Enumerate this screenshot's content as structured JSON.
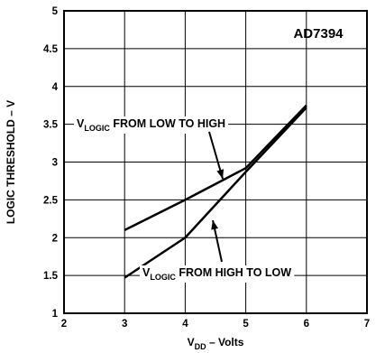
{
  "chart_data": {
    "type": "line",
    "title": "AD7394",
    "xlabel": {
      "main": "V",
      "sub": "DD",
      "rest": " – Volts"
    },
    "ylabel": "LOGIC THRESHOLD – V",
    "xlim": [
      2,
      7
    ],
    "ylim": [
      1,
      5
    ],
    "x_ticks": [
      "2",
      "3",
      "4",
      "5",
      "6",
      "7"
    ],
    "y_ticks": [
      "1",
      "1.5",
      "2",
      "2.5",
      "3",
      "3.5",
      "4",
      "4.5",
      "5"
    ],
    "grid": true,
    "series": [
      {
        "name": {
          "main": "V",
          "sub": "LOGIC",
          "rest": " FROM LOW TO HIGH"
        },
        "x": [
          3,
          4,
          5,
          6
        ],
        "y": [
          2.1,
          2.5,
          2.92,
          3.75
        ]
      },
      {
        "name": {
          "main": "V",
          "sub": "LOGIC",
          "rest": " FROM HIGH TO LOW"
        },
        "x": [
          3,
          4,
          5,
          6
        ],
        "y": [
          1.47,
          2.0,
          2.87,
          3.72
        ]
      }
    ]
  }
}
